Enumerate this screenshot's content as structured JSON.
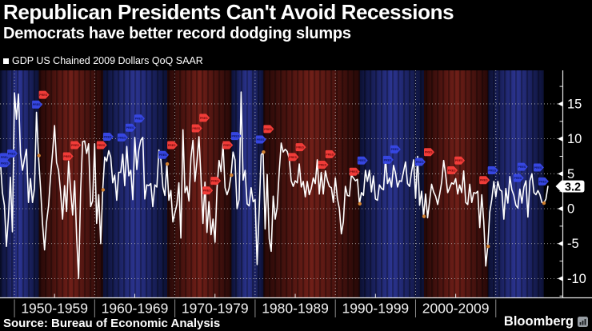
{
  "header": {
    "title": "Republican Presidents Can't Avoid Recessions",
    "subtitle": "Democrats have better record dodging slumps"
  },
  "legend": {
    "label": "GDP US Chained 2009 Dollars QoQ SAAR"
  },
  "footer": {
    "source": "Source: Bureau of Economic Analysis",
    "brand": "Bloomberg"
  },
  "colors": {
    "background": "#000000",
    "line": "#ffffff",
    "grid": "#bbbbbb",
    "axis": "#e8e8e8",
    "dem_band_mid": "#2b3490",
    "dem_band_edge": "#0c1134",
    "rep_band_mid": "#6f1f18",
    "rep_band_edge": "#260807",
    "flag_dem": "#3646e0",
    "flag_dem_text": "#0d1660",
    "flag_rep": "#f03c38",
    "flag_rep_text": "#6e0a0a",
    "boundary_dot": "#d2812f",
    "badge_bg": "#ffffff",
    "badge_text": "#000000"
  },
  "chart_data": {
    "type": "line",
    "title": "Republican Presidents Can't Avoid Recessions",
    "subtitle": "Democrats have better record dodging slumps",
    "xlabel": "",
    "ylabel": "",
    "x_domain": [
      1948.2,
      2018.3
    ],
    "ylim": [
      -12.7,
      19.8
    ],
    "y_axis": {
      "ticks": [
        15,
        10,
        5,
        0,
        -5,
        -10
      ],
      "minor_ticks": [
        17.5,
        12.5,
        7.5,
        2.5,
        -2.5,
        -7.5,
        -12.5
      ]
    },
    "x_axis": {
      "decades": [
        1950,
        1960,
        1970,
        1980,
        1990,
        2000,
        2010
      ],
      "decade_labels": [
        "1950-1959",
        "1960-1969",
        "1970-1979",
        "1980-1989",
        "1990-1999",
        "2000-2009"
      ]
    },
    "last_value": 3.2,
    "last_value_label": "3.2",
    "flag_label": "PRES",
    "series": [
      {
        "name": "GDP US Chained 2009 Dollars QoQ SAAR",
        "x_start": 1947.25,
        "x_step": 0.25,
        "values": [
          -0.4,
          -0.4,
          6.4,
          6.2,
          6.8,
          2.3,
          0.5,
          -5.4,
          -1.3,
          4.5,
          -3.3,
          16.6,
          12.8,
          16.4,
          7.9,
          5.5,
          7.1,
          8.5,
          0.9,
          4.3,
          0.9,
          2.9,
          13.8,
          7.6,
          3.1,
          -2.2,
          -5.9,
          -1.9,
          0.4,
          4.6,
          8.0,
          11.9,
          6.6,
          5.5,
          2.4,
          -1.5,
          3.3,
          -0.4,
          6.8,
          2.6,
          -0.9,
          4.0,
          -4.1,
          -10.0,
          2.6,
          9.6,
          9.7,
          7.9,
          9.3,
          0.3,
          1.1,
          9.3,
          -2.1,
          2.0,
          -5.0,
          2.7,
          7.4,
          6.8,
          8.3,
          7.4,
          3.7,
          4.8,
          1.2,
          5.2,
          5.2,
          7.8,
          3.3,
          8.9,
          4.7,
          5.5,
          1.3,
          10.2,
          5.6,
          8.4,
          9.8,
          10.2,
          1.4,
          3.4,
          3.3,
          3.6,
          0.3,
          3.4,
          3.1,
          8.4,
          7.0,
          3.1,
          1.9,
          6.4,
          1.2,
          2.6,
          -1.9,
          -0.6,
          0.6,
          3.7,
          -4.2,
          11.3,
          2.3,
          3.2,
          1.1,
          7.3,
          9.8,
          3.9,
          6.8,
          10.3,
          4.5,
          -2.1,
          3.8,
          -3.4,
          1.0,
          -3.7,
          -1.5,
          -4.8,
          3.0,
          6.9,
          5.3,
          9.3,
          3.0,
          2.0,
          2.9,
          4.8,
          8.1,
          7.0,
          0.0,
          1.3,
          16.7,
          4.1,
          5.5,
          0.7,
          0.4,
          3.0,
          1.0,
          1.3,
          -8.0,
          -0.5,
          7.7,
          8.1,
          -2.9,
          4.9,
          -4.3,
          -6.1,
          1.8,
          -1.5,
          0.2,
          5.3,
          9.4,
          8.1,
          8.5,
          8.2,
          7.2,
          4.0,
          3.2,
          4.0,
          3.7,
          6.4,
          3.1,
          3.9,
          1.7,
          3.9,
          2.0,
          2.9,
          4.4,
          3.6,
          7.0,
          2.1,
          5.2,
          2.1,
          5.4,
          4.1,
          3.2,
          3.0,
          0.9,
          4.4,
          1.5,
          0.0,
          -3.6,
          -1.9,
          3.2,
          1.9,
          1.8,
          4.8,
          4.4,
          4.0,
          4.2,
          0.7,
          2.3,
          1.9,
          5.5,
          3.9,
          5.5,
          2.4,
          4.7,
          1.4,
          1.2,
          3.4,
          2.9,
          2.7,
          7.2,
          3.6,
          4.4,
          3.1,
          6.2,
          5.1,
          3.1,
          4.0,
          3.9,
          5.3,
          6.7,
          3.6,
          3.2,
          5.3,
          7.0,
          1.5,
          7.5,
          0.5,
          2.5,
          -1.1,
          2.1,
          -1.3,
          1.1,
          3.5,
          2.4,
          1.8,
          0.6,
          2.1,
          3.8,
          6.9,
          4.8,
          2.3,
          3.0,
          3.7,
          3.5,
          4.3,
          2.1,
          3.4,
          2.3,
          5.4,
          0.9,
          0.6,
          3.5,
          0.9,
          2.3,
          2.2,
          2.5,
          -2.7,
          2.0,
          -1.9,
          -8.2,
          -5.4,
          -0.5,
          1.3,
          3.9,
          1.7,
          3.9,
          2.7,
          2.5,
          -1.5,
          2.9,
          0.8,
          4.6,
          2.7,
          1.9,
          0.5,
          0.1,
          2.8,
          0.8,
          3.1,
          4.0,
          -1.2,
          4.0,
          5.0,
          2.3,
          2.0,
          2.6,
          2.0,
          0.9,
          0.8,
          1.4,
          3.2
        ]
      }
    ],
    "presidential_terms": [
      {
        "party": "D",
        "start": 1947.25,
        "end": 1953.05
      },
      {
        "party": "R",
        "start": 1953.05,
        "end": 1961.05
      },
      {
        "party": "D",
        "start": 1961.05,
        "end": 1969.05
      },
      {
        "party": "R",
        "start": 1969.05,
        "end": 1977.05
      },
      {
        "party": "D",
        "start": 1977.05,
        "end": 1981.05
      },
      {
        "party": "R",
        "start": 1981.05,
        "end": 1993.05
      },
      {
        "party": "D",
        "start": 1993.05,
        "end": 2001.05
      },
      {
        "party": "R",
        "start": 2001.05,
        "end": 2009.05
      },
      {
        "party": "D",
        "start": 2009.05,
        "end": 2016.0
      }
    ],
    "flags": [
      {
        "year": 1948.2,
        "value": 7.4,
        "party": "D"
      },
      {
        "year": 1949.1,
        "value": 7.9,
        "party": "D"
      },
      {
        "year": 1948.2,
        "value": 6.5,
        "party": "D"
      },
      {
        "year": 1952.2,
        "value": 14.9,
        "party": "D"
      },
      {
        "year": 1953.05,
        "value": 16.3,
        "party": "R"
      },
      {
        "year": 1956.05,
        "value": 7.5,
        "party": "R"
      },
      {
        "year": 1957.0,
        "value": 9.1,
        "party": "R"
      },
      {
        "year": 1960.25,
        "value": 9.1,
        "party": "R"
      },
      {
        "year": 1961.05,
        "value": 10.3,
        "party": "D"
      },
      {
        "year": 1962.85,
        "value": 10.2,
        "party": "D"
      },
      {
        "year": 1963.85,
        "value": 11.6,
        "party": "D"
      },
      {
        "year": 1964.95,
        "value": 12.9,
        "party": "D"
      },
      {
        "year": 1967.95,
        "value": 7.7,
        "party": "D"
      },
      {
        "year": 1969.05,
        "value": 9.1,
        "party": "R"
      },
      {
        "year": 1972.1,
        "value": 11.5,
        "party": "R"
      },
      {
        "year": 1973.05,
        "value": 13.0,
        "party": "R"
      },
      {
        "year": 1973.45,
        "value": 2.6,
        "party": "R"
      },
      {
        "year": 1974.45,
        "value": 4.0,
        "party": "R"
      },
      {
        "year": 1975.95,
        "value": 9.1,
        "party": "R"
      },
      {
        "year": 1977.0,
        "value": 10.4,
        "party": "D"
      },
      {
        "year": 1980.1,
        "value": 9.9,
        "party": "D"
      },
      {
        "year": 1981.05,
        "value": 11.4,
        "party": "R"
      },
      {
        "year": 1984.15,
        "value": 7.4,
        "party": "R"
      },
      {
        "year": 1985.05,
        "value": 8.8,
        "party": "R"
      },
      {
        "year": 1987.85,
        "value": 6.3,
        "party": "R"
      },
      {
        "year": 1988.75,
        "value": 7.8,
        "party": "R"
      },
      {
        "year": 1991.75,
        "value": 5.3,
        "party": "R"
      },
      {
        "year": 1992.75,
        "value": 6.9,
        "party": "D"
      },
      {
        "year": 1995.95,
        "value": 7.0,
        "party": "D"
      },
      {
        "year": 1996.85,
        "value": 8.5,
        "party": "D"
      },
      {
        "year": 1999.95,
        "value": 6.7,
        "party": "D"
      },
      {
        "year": 2001.05,
        "value": 8.1,
        "party": "R"
      },
      {
        "year": 2003.95,
        "value": 5.5,
        "party": "R"
      },
      {
        "year": 2004.85,
        "value": 6.9,
        "party": "R"
      },
      {
        "year": 2007.95,
        "value": 4.1,
        "party": "R"
      },
      {
        "year": 2009.0,
        "value": 5.5,
        "party": "D"
      },
      {
        "year": 2012.2,
        "value": 4.4,
        "party": "D"
      },
      {
        "year": 2012.7,
        "value": 6.0,
        "party": "D"
      },
      {
        "year": 2014.7,
        "value": 5.9,
        "party": "D"
      },
      {
        "year": 2015.3,
        "value": 3.9,
        "party": "D"
      }
    ]
  }
}
